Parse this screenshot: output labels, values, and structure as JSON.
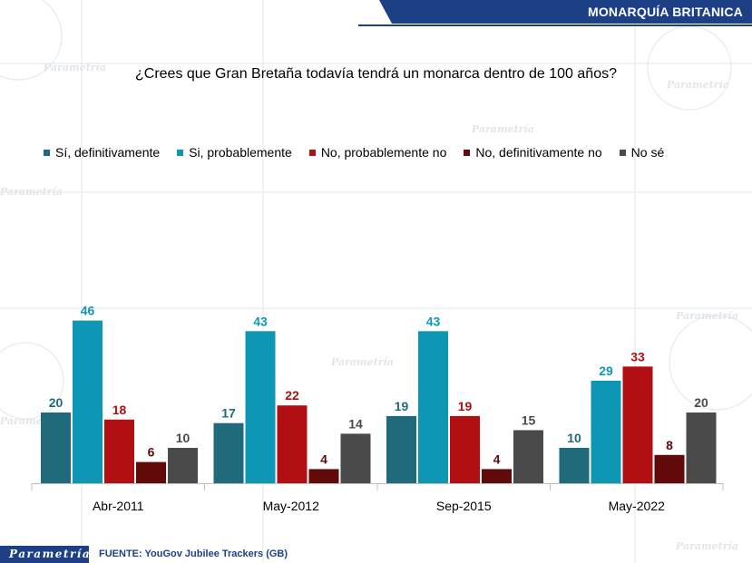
{
  "header": {
    "title": "MONARQUÍA BRITANICA"
  },
  "footer": {
    "logo": "Parametría",
    "source": "FUENTE: YouGov Jubilee Trackers (GB)"
  },
  "watermark": "Parametría",
  "colors": {
    "series": [
      "#1f6a7b",
      "#0e97b4",
      "#b20f12",
      "#620a0a",
      "#4a4a4a"
    ],
    "label": [
      "#1f6a7b",
      "#0e97b4",
      "#b20f12",
      "#620a0a",
      "#4a4a4a"
    ],
    "brand": "#1d3f86"
  },
  "chart_data": {
    "type": "bar",
    "title": "¿Crees que Gran Bretaña todavía tendrá un monarca dentro de 100 años?",
    "categories": [
      "Abr-2011",
      "May-2012",
      "Sep-2015",
      "May-2022"
    ],
    "series": [
      {
        "name": "Sí, definitivamente",
        "values": [
          20,
          17,
          19,
          10
        ]
      },
      {
        "name": "Si, probablemente",
        "values": [
          46,
          43,
          43,
          29
        ]
      },
      {
        "name": "No, probablemente no",
        "values": [
          18,
          22,
          19,
          33
        ]
      },
      {
        "name": "No, definitivamente no",
        "values": [
          6,
          4,
          4,
          8
        ]
      },
      {
        "name": "No sé",
        "values": [
          10,
          14,
          15,
          20
        ]
      }
    ],
    "xlabel": "",
    "ylabel": "",
    "ylim": [
      0,
      50
    ],
    "legend": "top",
    "grid": false
  }
}
